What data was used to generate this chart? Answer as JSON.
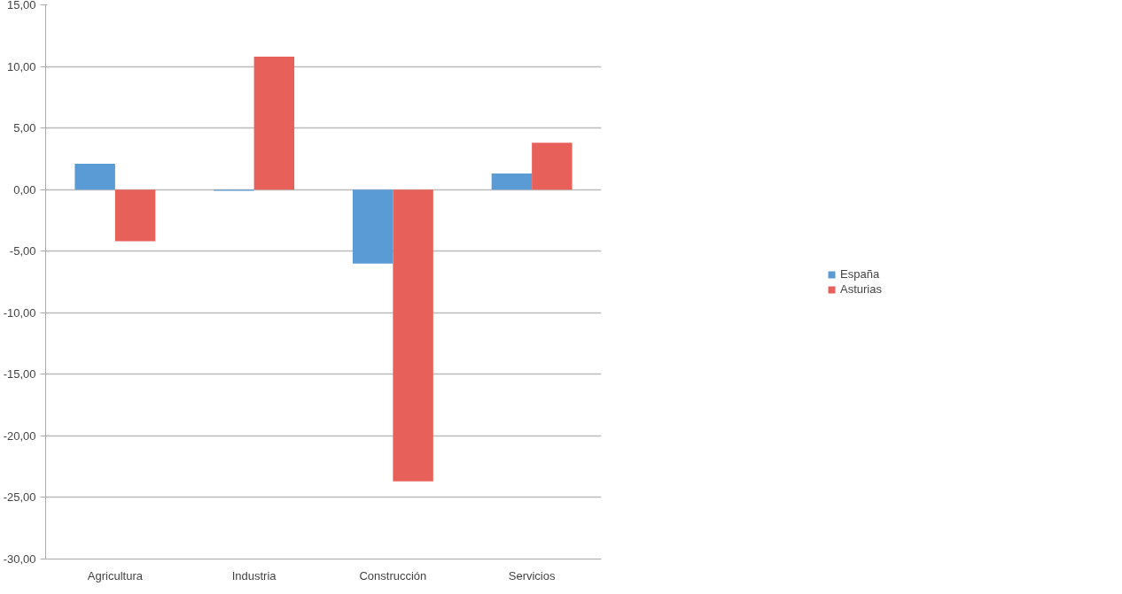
{
  "chart_data": {
    "type": "bar",
    "categories": [
      "Agricultura",
      "Industria",
      "Construcción",
      "Servicios"
    ],
    "series": [
      {
        "name": "España",
        "color": "#5b9bd5",
        "values": [
          2.1,
          -0.1,
          -6.0,
          1.3
        ]
      },
      {
        "name": "Asturias",
        "color": "#e8605a",
        "values": [
          -4.2,
          10.8,
          -23.7,
          3.8
        ]
      }
    ],
    "ylim": [
      -30,
      15
    ],
    "yticks": [
      {
        "value": -30,
        "label": "-30,00"
      },
      {
        "value": -25,
        "label": "-25,00"
      },
      {
        "value": -20,
        "label": "-20,00"
      },
      {
        "value": -15,
        "label": "-15,00"
      },
      {
        "value": -10,
        "label": "-10,00"
      },
      {
        "value": -5,
        "label": "-5,00"
      },
      {
        "value": 0,
        "label": "0,00"
      },
      {
        "value": 5,
        "label": "5,00"
      },
      {
        "value": 10,
        "label": "10,00"
      },
      {
        "value": 15,
        "label": "15,00"
      }
    ],
    "grid": "y",
    "legend": "right"
  }
}
